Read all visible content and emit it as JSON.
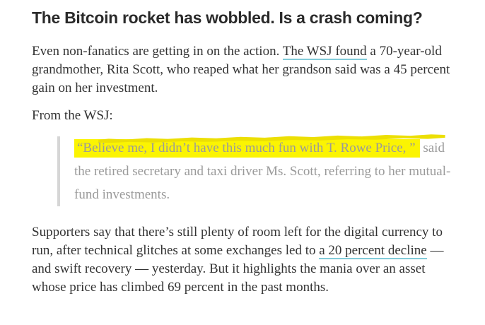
{
  "colors": {
    "page_bg": "#ffffff",
    "headline_text": "#2a2a2a",
    "body_text": "#333333",
    "link_text": "#333333",
    "link_underline": "#82cbd9",
    "quote_text": "#9a9a9a",
    "quote_border": "#d6d6d6",
    "highlight": "#fbf402",
    "highlight_stroke": "#ecdf04"
  },
  "article": {
    "headline": "The Bitcoin rocket has wobbled. Is a crash coming?",
    "intro": {
      "before_link": "Even non-fanatics are getting in on the action. ",
      "link_label": "The WSJ found",
      "after_link": " a 70-year-old grandmother, Rita Scott, who reaped what her grandson said was a 45 percent gain on her investment."
    },
    "quote_lead_in": "From the WSJ:",
    "quote": {
      "highlighted_text": "“Believe me, I didn’t have this much fun with T. Rowe Price, ”",
      "remaining_text": " said the retired secretary and taxi driver Ms. Scott, referring to her mutual-fund investments."
    },
    "closing": {
      "before_link": "Supporters say that there’s still plenty of room left for the digital currency to run, after technical glitches at some exchanges led to ",
      "link_label": "a 20 percent decline",
      "after_link": " — and swift recovery — yesterday. But it highlights the mania over an asset whose price has climbed 69 percent in the past months."
    }
  }
}
